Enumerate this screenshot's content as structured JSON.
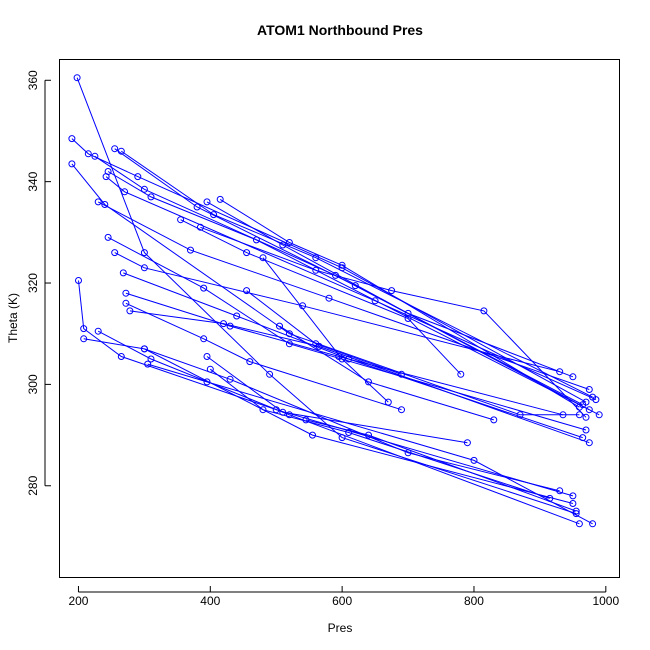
{
  "chart_data": {
    "type": "scatter",
    "title": "ATOM1 Northbound Pres",
    "xlabel": "Pres",
    "ylabel": "Theta (K)",
    "xlim": [
      172,
      1020
    ],
    "ylim": [
      262,
      364
    ],
    "x_ticks": [
      200,
      400,
      600,
      800,
      1000
    ],
    "y_ticks": [
      280,
      300,
      320,
      340,
      360
    ],
    "x_tick_labels": [
      "200",
      "400",
      "600",
      "800",
      "1000"
    ],
    "y_tick_labels": [
      "280",
      "300",
      "320",
      "340",
      "360"
    ],
    "grid": false,
    "legend": "none",
    "series_color": "#0000ff",
    "series": [
      {
        "values": [
          [
            198,
            360.5
          ],
          [
            300,
            326.0
          ],
          [
            490,
            302.0
          ],
          [
            600,
            289.5
          ],
          [
            955,
            274.5
          ]
        ]
      },
      {
        "values": [
          [
            190,
            348.5
          ],
          [
            215,
            345.5
          ],
          [
            290,
            341.0
          ],
          [
            600,
            323.0
          ],
          [
            970,
            296.5
          ]
        ]
      },
      {
        "values": [
          [
            255,
            346.5
          ],
          [
            380,
            335.0
          ],
          [
            620,
            319.5
          ],
          [
            975,
            295.0
          ]
        ]
      },
      {
        "values": [
          [
            265,
            346.0
          ],
          [
            405,
            333.5
          ],
          [
            560,
            325.0
          ],
          [
            980,
            297.5
          ]
        ]
      },
      {
        "values": [
          [
            225,
            345.0
          ],
          [
            300,
            338.5
          ],
          [
            590,
            321.5
          ],
          [
            965,
            296.0
          ]
        ]
      },
      {
        "values": [
          [
            190,
            343.5
          ],
          [
            240,
            335.5
          ],
          [
            520,
            310.0
          ],
          [
            870,
            294.0
          ],
          [
            960,
            294.0
          ]
        ]
      },
      {
        "values": [
          [
            245,
            342.0
          ],
          [
            310,
            337.0
          ],
          [
            470,
            328.5
          ],
          [
            990,
            294.0
          ]
        ]
      },
      {
        "values": [
          [
            242,
            341.0
          ],
          [
            270,
            338.0
          ],
          [
            650,
            316.5
          ],
          [
            985,
            297.0
          ]
        ]
      },
      {
        "values": [
          [
            230,
            336.0
          ],
          [
            370,
            326.5
          ],
          [
            580,
            317.0
          ],
          [
            975,
            299.0
          ]
        ]
      },
      {
        "values": [
          [
            245,
            329.0
          ],
          [
            390,
            319.0
          ],
          [
            520,
            308.0
          ],
          [
            970,
            291.0
          ]
        ]
      },
      {
        "values": [
          [
            255,
            326.0
          ],
          [
            300,
            323.0
          ],
          [
            540,
            315.5
          ],
          [
            930,
            302.5
          ]
        ]
      },
      {
        "values": [
          [
            268,
            322.0
          ],
          [
            440,
            313.5
          ],
          [
            610,
            305.0
          ],
          [
            965,
            289.5
          ]
        ]
      },
      {
        "values": [
          [
            272,
            318.0
          ],
          [
            430,
            311.5
          ],
          [
            595,
            305.5
          ],
          [
            935,
            294.0
          ]
        ]
      },
      {
        "values": [
          [
            272,
            316.0
          ],
          [
            390,
            309.0
          ],
          [
            460,
            304.5
          ],
          [
            690,
            295.0
          ]
        ]
      },
      {
        "values": [
          [
            278,
            314.5
          ],
          [
            420,
            312.0
          ],
          [
            565,
            307.5
          ],
          [
            975,
            288.5
          ]
        ]
      },
      {
        "values": [
          [
            200,
            320.5
          ],
          [
            208,
            311.0
          ],
          [
            265,
            305.5
          ],
          [
            500,
            295.0
          ],
          [
            950,
            278.0
          ]
        ]
      },
      {
        "values": [
          [
            208,
            309.0
          ],
          [
            300,
            307.0
          ],
          [
            555,
            290.0
          ],
          [
            950,
            276.5
          ]
        ]
      },
      {
        "values": [
          [
            230,
            310.5
          ],
          [
            310,
            305.0
          ],
          [
            520,
            294.0
          ],
          [
            960,
            272.5
          ]
        ]
      },
      {
        "values": [
          [
            305,
            304.0
          ],
          [
            395,
            300.5
          ],
          [
            800,
            285.0
          ],
          [
            980,
            272.5
          ]
        ]
      },
      {
        "values": [
          [
            300,
            307.0
          ],
          [
            430,
            301.0
          ],
          [
            700,
            286.5
          ],
          [
            930,
            279.0
          ]
        ]
      },
      {
        "values": [
          [
            400,
            303.0
          ],
          [
            480,
            295.0
          ],
          [
            610,
            290.5
          ],
          [
            915,
            277.5
          ]
        ]
      },
      {
        "values": [
          [
            545,
            293.0
          ],
          [
            640,
            290.0
          ],
          [
            955,
            275.0
          ]
        ]
      },
      {
        "values": [
          [
            395,
            305.5
          ],
          [
            510,
            294.5
          ],
          [
            790,
            288.5
          ]
        ]
      },
      {
        "values": [
          [
            455,
            318.5
          ],
          [
            560,
            308.0
          ],
          [
            690,
            302.0
          ]
        ]
      },
      {
        "values": [
          [
            480,
            325.0
          ],
          [
            600,
            305.0
          ],
          [
            670,
            296.5
          ]
        ]
      },
      {
        "values": [
          [
            505,
            311.5
          ],
          [
            640,
            300.5
          ],
          [
            830,
            293.0
          ]
        ]
      },
      {
        "values": [
          [
            355,
            332.5
          ],
          [
            455,
            326.0
          ],
          [
            700,
            313.0
          ],
          [
            780,
            302.0
          ]
        ]
      },
      {
        "values": [
          [
            385,
            331.0
          ],
          [
            560,
            322.5
          ],
          [
            675,
            318.5
          ],
          [
            815,
            314.5
          ],
          [
            970,
            293.5
          ]
        ]
      },
      {
        "values": [
          [
            415,
            336.5
          ],
          [
            520,
            328.0
          ],
          [
            600,
            323.5
          ],
          [
            960,
            295.5
          ]
        ]
      },
      {
        "values": [
          [
            395,
            336.0
          ],
          [
            510,
            327.5
          ],
          [
            700,
            314.0
          ],
          [
            950,
            301.5
          ]
        ]
      }
    ]
  }
}
